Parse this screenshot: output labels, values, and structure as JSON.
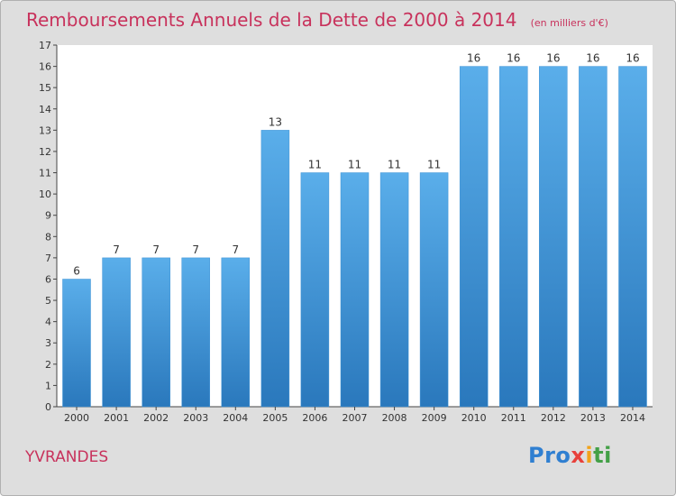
{
  "chart_data": {
    "type": "bar",
    "title": "Remboursements Annuels de la Dette de 2000 à 2014",
    "subtitle": "(en milliers d'€)",
    "categories": [
      "2000",
      "2001",
      "2002",
      "2003",
      "2004",
      "2005",
      "2006",
      "2007",
      "2008",
      "2009",
      "2010",
      "2011",
      "2012",
      "2013",
      "2014"
    ],
    "values": [
      6,
      7,
      7,
      7,
      7,
      13,
      11,
      11,
      11,
      11,
      16,
      16,
      16,
      16,
      16
    ],
    "ylim": [
      0,
      17
    ],
    "yticks": [
      0,
      1,
      2,
      3,
      4,
      5,
      6,
      7,
      8,
      9,
      10,
      11,
      12,
      13,
      14,
      15,
      16,
      17
    ],
    "xlabel": "",
    "ylabel": "",
    "grid": false,
    "bar_color": "#3f93d6"
  },
  "footer": {
    "commune": "YVRANDES",
    "logo_parts": [
      "Pro",
      "x",
      "i",
      "ti"
    ]
  }
}
